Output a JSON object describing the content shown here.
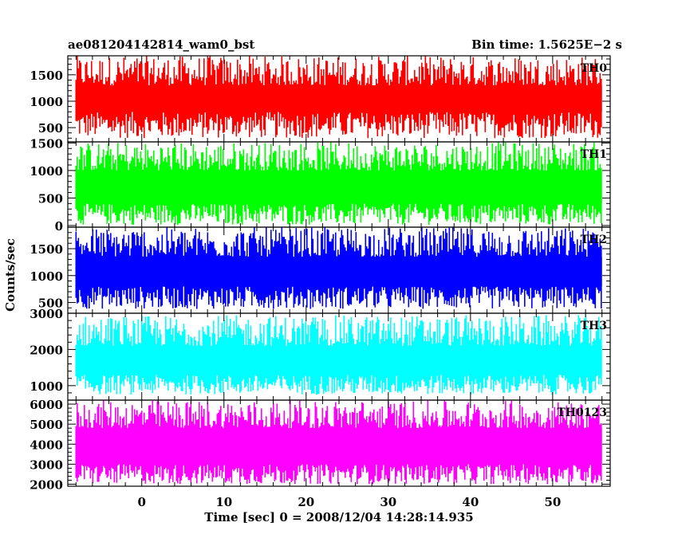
{
  "header": {
    "title": "ae081204142814_wam0_bst",
    "bin_time": "Bin time: 1.5625E−2 s"
  },
  "chart_data": {
    "type": "line",
    "xlabel": "Time [sec] 0 = 2008/12/04 14:28:14.935",
    "ylabel": "Counts/sec",
    "xlim": [
      -9,
      57
    ],
    "xticks": [
      0,
      10,
      20,
      30,
      40,
      50
    ],
    "data_x_range": [
      -8,
      56
    ],
    "bin_time_s": 0.015625,
    "grid": false,
    "legend": "none",
    "panels": [
      {
        "name": "TH0",
        "color": "#ff0000",
        "ylim": [
          230,
          1860
        ],
        "yticks": [
          500,
          1000,
          1500
        ],
        "lower_envelope": [
          300,
          800
        ],
        "upper_envelope": [
          1300,
          1860
        ],
        "typical": 850
      },
      {
        "name": "TH1",
        "color": "#00ff00",
        "ylim": [
          -30,
          1520
        ],
        "yticks": [
          0,
          500,
          1000,
          1500
        ],
        "lower_envelope": [
          10,
          400
        ],
        "upper_envelope": [
          1000,
          1520
        ],
        "typical": 700
      },
      {
        "name": "TH2",
        "color": "#0000ff",
        "ylim": [
          300,
          1900
        ],
        "yticks": [
          500,
          1000,
          1500
        ],
        "lower_envelope": [
          380,
          800
        ],
        "upper_envelope": [
          1350,
          1900
        ],
        "typical": 1100
      },
      {
        "name": "TH3",
        "color": "#00ffff",
        "ylim": [
          600,
          3000
        ],
        "yticks": [
          1000,
          2000,
          3000
        ],
        "lower_envelope": [
          750,
          1300
        ],
        "upper_envelope": [
          2100,
          2950
        ],
        "typical": 1700
      },
      {
        "name": "TH0123",
        "color": "#ff00ff",
        "ylim": [
          1900,
          6200
        ],
        "yticks": [
          2000,
          3000,
          4000,
          5000,
          6000
        ],
        "lower_envelope": [
          2000,
          3000
        ],
        "upper_envelope": [
          4800,
          6200
        ],
        "typical": 4000
      }
    ]
  }
}
